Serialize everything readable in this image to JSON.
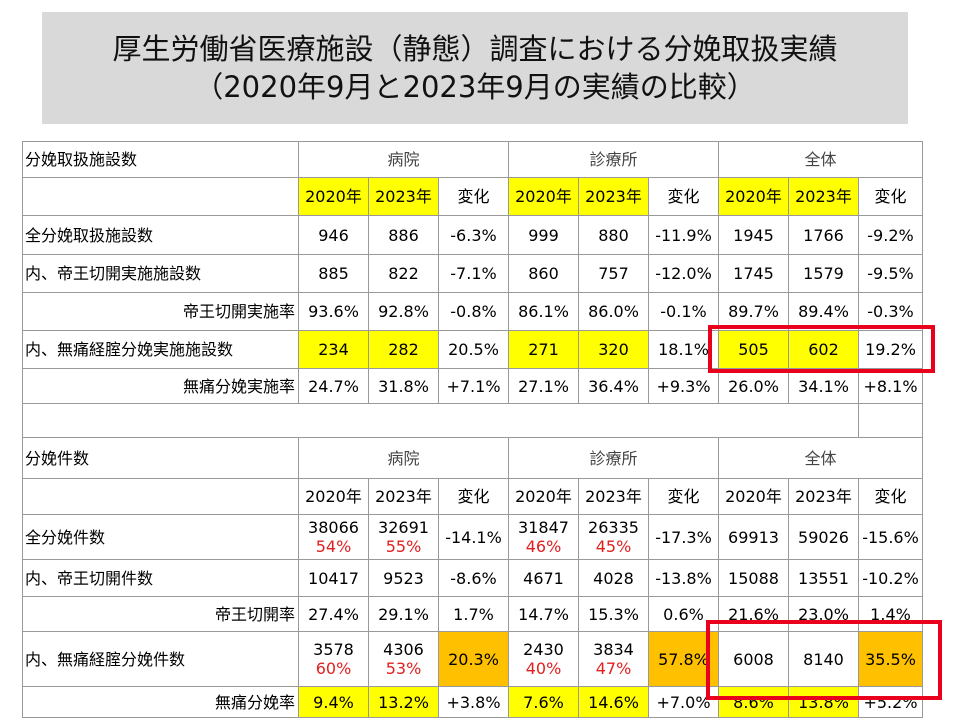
{
  "header": {
    "title": [
      "厚生労働省医療施設（静態）調査における分娩取扱実績",
      "（2020年9月と2023年9月の実績の比較）"
    ]
  },
  "sections": [
    {
      "title": "分娩取扱施設数",
      "groups": [
        "病院",
        "診療所",
        "全体"
      ],
      "subheaders": [
        {
          "text": "2020年",
          "bg": "yellow"
        },
        {
          "text": "2023年",
          "bg": "yellow"
        },
        {
          "text": "変化"
        },
        {
          "text": "2020年",
          "bg": "yellow"
        },
        {
          "text": "2023年",
          "bg": "yellow"
        },
        {
          "text": "変化"
        },
        {
          "text": "2020年",
          "bg": "yellow"
        },
        {
          "text": "2023年",
          "bg": "yellow"
        },
        {
          "text": "変化"
        }
      ],
      "rows": [
        {
          "label": "全分娩取扱施設数",
          "cells": [
            {
              "text": "946"
            },
            {
              "text": "886"
            },
            {
              "text": "-6.3%"
            },
            {
              "text": "999"
            },
            {
              "text": "880"
            },
            {
              "text": "-11.9%"
            },
            {
              "text": "1945"
            },
            {
              "text": "1766"
            },
            {
              "text": "-9.2%"
            }
          ]
        },
        {
          "label": "内、帝王切開実施施設数",
          "cells": [
            {
              "text": "885"
            },
            {
              "text": "822"
            },
            {
              "text": "-7.1%"
            },
            {
              "text": "860"
            },
            {
              "text": "757"
            },
            {
              "text": "-12.0%"
            },
            {
              "text": "1745"
            },
            {
              "text": "1579"
            },
            {
              "text": "-9.5%"
            }
          ]
        },
        {
          "label": "帝王切開実施率",
          "align": "right",
          "cells": [
            {
              "text": "93.6%"
            },
            {
              "text": "92.8%"
            },
            {
              "text": "-0.8%"
            },
            {
              "text": "86.1%"
            },
            {
              "text": "86.0%"
            },
            {
              "text": "-0.1%"
            },
            {
              "text": "89.7%"
            },
            {
              "text": "89.4%"
            },
            {
              "text": "-0.3%"
            }
          ]
        },
        {
          "label": "内、無痛経腟分娩実施施設数",
          "cells": [
            {
              "text": "234",
              "bg": "yellow"
            },
            {
              "text": "282",
              "bg": "yellow"
            },
            {
              "text": "20.5%"
            },
            {
              "text": "271",
              "bg": "yellow"
            },
            {
              "text": "320",
              "bg": "yellow"
            },
            {
              "text": "18.1%"
            },
            {
              "text": "505",
              "bg": "yellow"
            },
            {
              "text": "602",
              "bg": "yellow"
            },
            {
              "text": "19.2%"
            }
          ]
        },
        {
          "label": "無痛分娩実施率",
          "align": "right",
          "cells": [
            {
              "text": "24.7%"
            },
            {
              "text": "31.8%"
            },
            {
              "text": "+7.1%"
            },
            {
              "text": "27.1%"
            },
            {
              "text": "36.4%"
            },
            {
              "text": "+9.3%"
            },
            {
              "text": "26.0%"
            },
            {
              "text": "34.1%"
            },
            {
              "text": "+8.1%"
            }
          ]
        }
      ]
    },
    {
      "title": "分娩件数",
      "groups": [
        "病院",
        "診療所",
        "全体"
      ],
      "subheaders": [
        {
          "text": "2020年"
        },
        {
          "text": "2023年"
        },
        {
          "text": "変化"
        },
        {
          "text": "2020年"
        },
        {
          "text": "2023年"
        },
        {
          "text": "変化"
        },
        {
          "text": "2020年"
        },
        {
          "text": "2023年"
        },
        {
          "text": "変化"
        }
      ],
      "rows": [
        {
          "label": "全分娩件数",
          "cells": [
            {
              "text": "38066",
              "note": "54%"
            },
            {
              "text": "32691",
              "note": "55%"
            },
            {
              "text": "-14.1%"
            },
            {
              "text": "31847",
              "note": "46%"
            },
            {
              "text": "26335",
              "note": "45%"
            },
            {
              "text": "-17.3%"
            },
            {
              "text": "69913"
            },
            {
              "text": "59026"
            },
            {
              "text": "-15.6%"
            }
          ]
        },
        {
          "label": "内、帝王切開件数",
          "cells": [
            {
              "text": "10417"
            },
            {
              "text": "9523"
            },
            {
              "text": "-8.6%"
            },
            {
              "text": "4671"
            },
            {
              "text": "4028"
            },
            {
              "text": "-13.8%"
            },
            {
              "text": "15088"
            },
            {
              "text": "13551"
            },
            {
              "text": "-10.2%"
            }
          ]
        },
        {
          "label": "帝王切開率",
          "align": "right",
          "cells": [
            {
              "text": "27.4%"
            },
            {
              "text": "29.1%"
            },
            {
              "text": "1.7%"
            },
            {
              "text": "14.7%"
            },
            {
              "text": "15.3%"
            },
            {
              "text": "0.6%"
            },
            {
              "text": "21.6%"
            },
            {
              "text": "23.0%"
            },
            {
              "text": "1.4%"
            }
          ]
        },
        {
          "label": "内、無痛経腟分娩件数",
          "cells": [
            {
              "text": "3578",
              "note": "60%"
            },
            {
              "text": "4306",
              "note": "53%"
            },
            {
              "text": "20.3%",
              "bg": "orange"
            },
            {
              "text": "2430",
              "note": "40%"
            },
            {
              "text": "3834",
              "note": "47%"
            },
            {
              "text": "57.8%",
              "bg": "orange"
            },
            {
              "text": "6008"
            },
            {
              "text": "8140"
            },
            {
              "text": "35.5%",
              "bg": "orange"
            }
          ]
        },
        {
          "label": "無痛分娩率",
          "align": "right",
          "cells": [
            {
              "text": "9.4%",
              "bg": "yellow"
            },
            {
              "text": "13.2%",
              "bg": "yellow"
            },
            {
              "text": "+3.8%"
            },
            {
              "text": "7.6%",
              "bg": "yellow"
            },
            {
              "text": "14.6%",
              "bg": "yellow"
            },
            {
              "text": "+7.0%"
            },
            {
              "text": "8.6%",
              "bg": "yellow"
            },
            {
              "text": "13.8%",
              "bg": "yellow"
            },
            {
              "text": "+5.2%"
            }
          ]
        }
      ]
    }
  ]
}
